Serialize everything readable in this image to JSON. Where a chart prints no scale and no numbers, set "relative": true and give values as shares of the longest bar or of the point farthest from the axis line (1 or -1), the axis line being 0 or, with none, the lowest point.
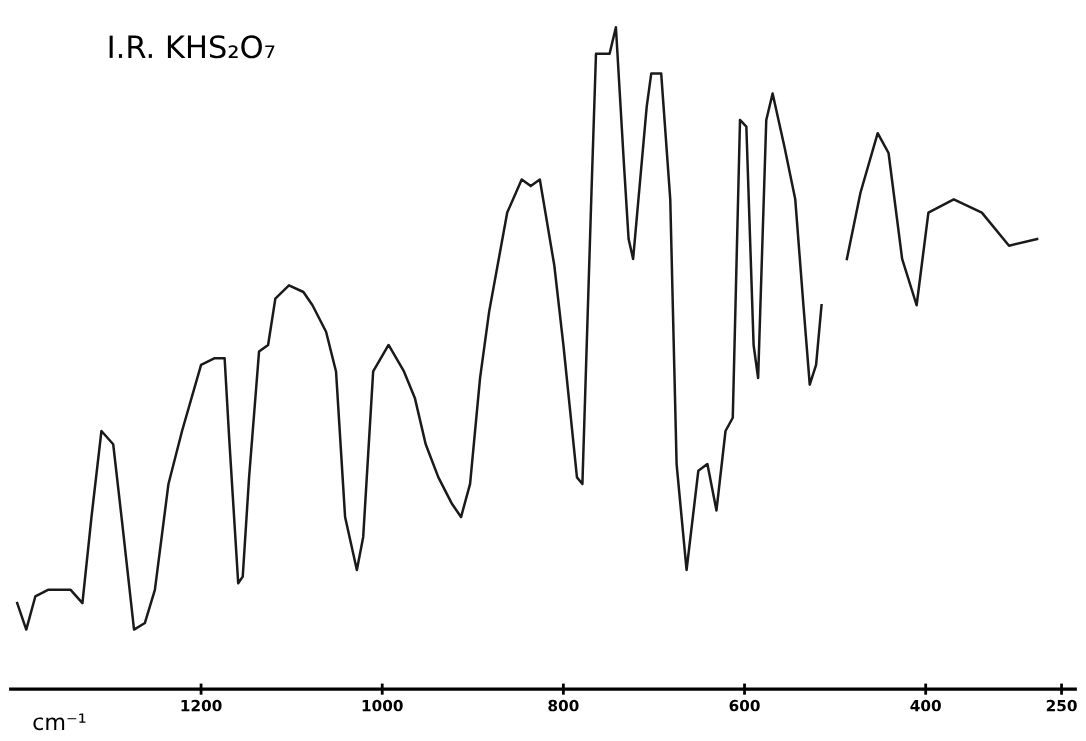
{
  "chart_data": {
    "type": "line",
    "title": "I.R. KHS₂O₇",
    "xlabel": "cm⁻¹",
    "relative": true,
    "x": [
      1403,
      1393,
      1383,
      1369,
      1354,
      1344,
      1331,
      1321,
      1310,
      1297,
      1287,
      1274,
      1262,
      1251,
      1236,
      1221,
      1200,
      1185,
      1174,
      1169,
      1159,
      1154,
      1147,
      1136,
      1126,
      1118,
      1103,
      1087,
      1077,
      1062,
      1051,
      1041,
      1028,
      1021,
      1010,
      993,
      976,
      964,
      952,
      938,
      923,
      913,
      903,
      892,
      882,
      862,
      846,
      836,
      826,
      810,
      800,
      785,
      779,
      769,
      764,
      749,
      742,
      733,
      728,
      723,
      708,
      703,
      692,
      682,
      675,
      664,
      651,
      641,
      631,
      621,
      613,
      605,
      598,
      590,
      585,
      576,
      569,
      556,
      544,
      535,
      528,
      521,
      515,
      500,
      487,
      472,
      453,
      441,
      426,
      410,
      397,
      369,
      338,
      308,
      277
    ],
    "series": [
      {
        "color": "#1a1a1a",
        "values": [
          0.13,
          0.09,
          0.14,
          0.15,
          0.15,
          0.15,
          0.13,
          0.26,
          0.39,
          0.37,
          0.25,
          0.09,
          0.1,
          0.15,
          0.31,
          0.39,
          0.49,
          0.5,
          0.5,
          0.38,
          0.16,
          0.17,
          0.32,
          0.51,
          0.52,
          0.59,
          0.61,
          0.6,
          0.58,
          0.54,
          0.48,
          0.26,
          0.18,
          0.23,
          0.48,
          0.52,
          0.48,
          0.44,
          0.37,
          0.32,
          0.28,
          0.26,
          0.31,
          0.47,
          0.57,
          0.72,
          0.77,
          0.76,
          0.77,
          0.64,
          0.52,
          0.32,
          0.31,
          0.75,
          0.96,
          0.96,
          1.0,
          0.79,
          0.68,
          0.65,
          0.88,
          0.93,
          0.93,
          0.74,
          0.34,
          0.18,
          0.33,
          0.34,
          0.27,
          0.39,
          0.41,
          0.86,
          0.85,
          0.52,
          0.47,
          0.86,
          0.9,
          0.82,
          0.74,
          0.58,
          0.46,
          0.49,
          0.58,
          null,
          0.65,
          0.75,
          0.84,
          0.81,
          0.65,
          0.58,
          0.72,
          0.74,
          0.72,
          0.67,
          0.68
        ]
      }
    ],
    "xlim": [
      1410,
      235
    ],
    "xticks": [
      1200,
      1000,
      800,
      600,
      400,
      250
    ],
    "tick_labels": "x",
    "grid": false,
    "legend": false,
    "marker": "none",
    "line_style": "solid"
  }
}
